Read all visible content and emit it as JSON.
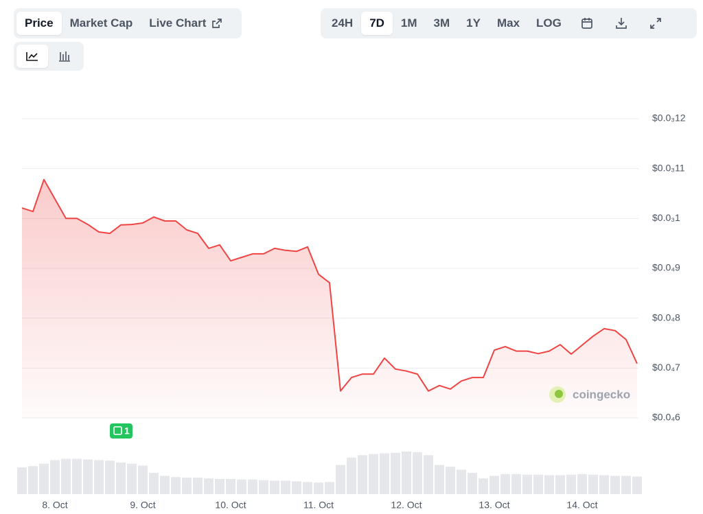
{
  "toolbar": {
    "tabs": [
      "Price",
      "Market Cap",
      "Live Chart"
    ],
    "ranges": [
      "24H",
      "7D",
      "1M",
      "3M",
      "1Y",
      "Max",
      "LOG"
    ],
    "active_tab": "Price",
    "active_range": "7D"
  },
  "chart_data": {
    "type": "line",
    "series": [
      {
        "name": "Price",
        "color": "#ef4444",
        "values": [
          0.0001021,
          0.0001014,
          0.0001078,
          0.0001039,
          0.0001,
          0.0001,
          9.88e-05,
          9.73e-05,
          9.7e-05,
          9.87e-05,
          9.88e-05,
          9.91e-05,
          0.0001003,
          9.95e-05,
          9.95e-05,
          9.77e-05,
          9.7e-05,
          9.4e-05,
          9.47e-05,
          9.15e-05,
          9.22e-05,
          9.29e-05,
          9.29e-05,
          9.4e-05,
          9.36e-05,
          9.34e-05,
          9.43e-05,
          8.88e-05,
          8.71e-05,
          6.54e-05,
          6.81e-05,
          6.88e-05,
          6.88e-05,
          7.2e-05,
          6.98e-05,
          6.94e-05,
          6.88e-05,
          6.54e-05,
          6.65e-05,
          6.58e-05,
          6.74e-05,
          6.81e-05,
          6.81e-05,
          7.36e-05,
          7.43e-05,
          7.34e-05,
          7.34e-05,
          7.29e-05,
          7.34e-05,
          7.47e-05,
          7.28e-05,
          7.46e-05,
          7.64e-05,
          7.79e-05,
          7.75e-05,
          7.57e-05,
          7.09e-05
        ]
      }
    ],
    "volume": [
      44,
      46,
      50,
      56,
      58,
      58,
      57,
      56,
      55,
      52,
      50,
      47,
      35,
      30,
      28,
      27,
      27,
      26,
      25,
      25,
      24,
      24,
      23,
      22,
      22,
      21,
      20,
      19,
      20,
      48,
      60,
      64,
      66,
      67,
      68,
      70,
      69,
      64,
      48,
      45,
      40,
      35,
      26,
      30,
      33,
      33,
      32,
      32,
      31,
      31,
      32,
      33,
      32,
      31,
      30,
      30,
      29
    ],
    "xlim": [
      0,
      56
    ],
    "xticks": [
      {
        "value": 3,
        "label": "8. Oct"
      },
      {
        "value": 11,
        "label": "9. Oct"
      },
      {
        "value": 19,
        "label": "10. Oct"
      },
      {
        "value": 27,
        "label": "11. Oct"
      },
      {
        "value": 35,
        "label": "12. Oct"
      },
      {
        "value": 43,
        "label": "13. Oct"
      },
      {
        "value": 51,
        "label": "14. Oct"
      }
    ],
    "ylim": [
      6e-05,
      0.00012
    ],
    "yticks": [
      {
        "value": 0.00012,
        "label": "$0.0₃12"
      },
      {
        "value": 0.00011,
        "label": "$0.0₃11"
      },
      {
        "value": 0.0001,
        "label": "$0.0₃1"
      },
      {
        "value": 9e-05,
        "label": "$0.0₄9"
      },
      {
        "value": 8e-05,
        "label": "$0.0₄8"
      },
      {
        "value": 7e-05,
        "label": "$0.0₄7"
      },
      {
        "value": 6e-05,
        "label": "$0.0₄6"
      }
    ],
    "grid": true,
    "news_count": 1,
    "watermark": "coingecko"
  }
}
